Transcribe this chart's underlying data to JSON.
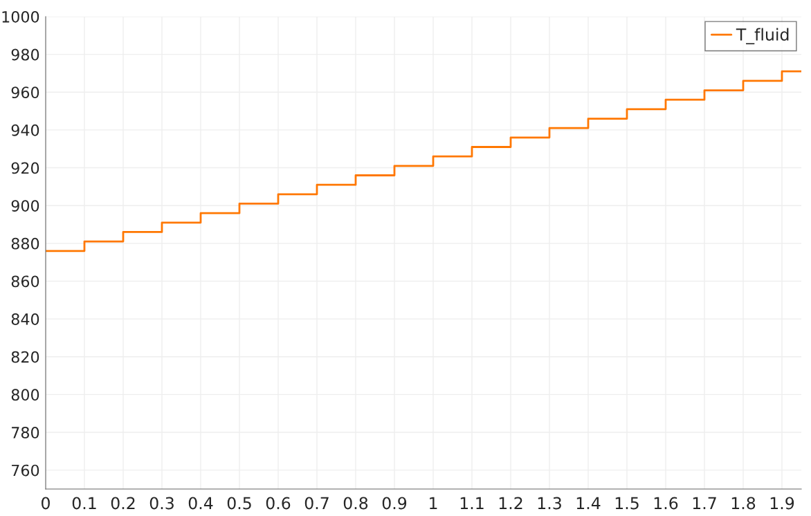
{
  "chart_data": {
    "type": "step",
    "grid": true,
    "legend": "top right",
    "line_style": "solid",
    "xlim": [
      0,
      1.95
    ],
    "ylim": [
      750,
      1000
    ],
    "xticks": [
      0,
      0.1,
      0.2,
      0.3,
      0.4,
      0.5,
      0.6,
      0.7,
      0.8,
      0.9,
      1,
      1.1,
      1.2,
      1.3,
      1.4,
      1.5,
      1.6,
      1.7,
      1.8,
      1.9
    ],
    "yticks": [
      760,
      780,
      800,
      820,
      840,
      860,
      880,
      900,
      920,
      940,
      960,
      980,
      1000
    ],
    "series": [
      {
        "name": "T_fluid",
        "color": "#ff7700",
        "x": [
          0,
          0.1,
          0.2,
          0.3,
          0.4,
          0.5,
          0.6,
          0.7,
          0.8,
          0.9,
          1,
          1.1,
          1.2,
          1.3,
          1.4,
          1.5,
          1.6,
          1.7,
          1.8,
          1.9,
          1.95
        ],
        "values": [
          876,
          881,
          886,
          891,
          896,
          901,
          906,
          911,
          916,
          921,
          926,
          931,
          936,
          941,
          946,
          951,
          956,
          961,
          966,
          971,
          971
        ]
      }
    ]
  }
}
